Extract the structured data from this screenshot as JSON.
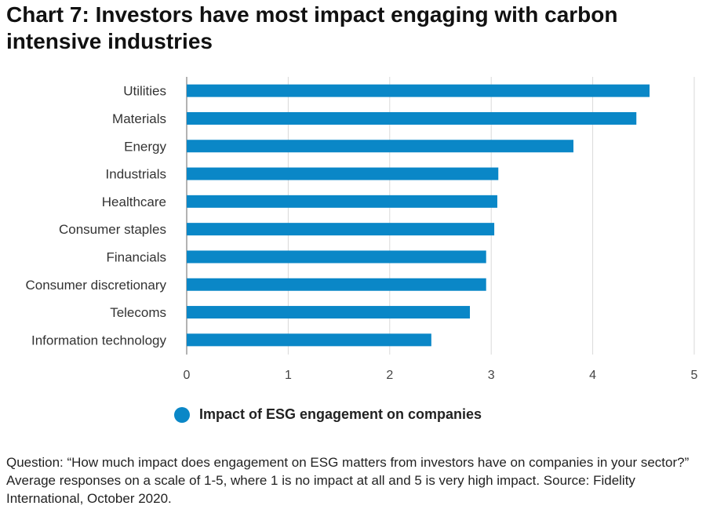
{
  "title": "Chart 7: Investors have most impact engaging with carbon intensive industries",
  "chart_data": {
    "type": "bar",
    "orientation": "horizontal",
    "categories": [
      "Utilities",
      "Materials",
      "Energy",
      "Industrials",
      "Healthcare",
      "Consumer staples",
      "Financials",
      "Consumer discretionary",
      "Telecoms",
      "Information technology"
    ],
    "series": [
      {
        "name": "Impact of ESG engagement on companies",
        "values": [
          4.56,
          4.43,
          3.81,
          3.07,
          3.06,
          3.03,
          2.95,
          2.95,
          2.79,
          2.41
        ]
      }
    ],
    "xlim": [
      0,
      5
    ],
    "xticks": [
      "0",
      "1",
      "2",
      "3",
      "4",
      "5"
    ],
    "grid": true,
    "legend_position": "bottom"
  },
  "colors": {
    "bar": "#0a87c7",
    "grid": "#d9d9d9",
    "axis": "#9a9a9a"
  },
  "note": "Question: “How much impact does engagement on ESG matters from investors have on companies in your sector?” Average responses on a scale of 1-5, where 1 is no impact at all and 5 is very high impact. Source: Fidelity International, October 2020."
}
